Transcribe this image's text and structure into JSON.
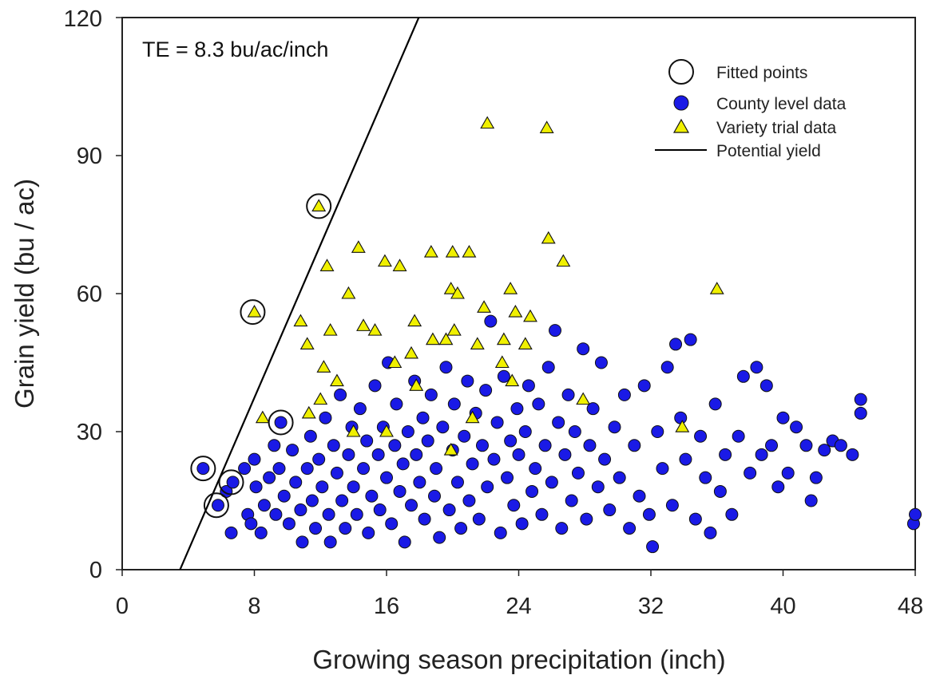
{
  "chart_data": {
    "type": "scatter",
    "xlabel": "Growing season precipitation (inch)",
    "ylabel": "Grain yield (bu / ac)",
    "xlim": [
      0,
      48
    ],
    "ylim": [
      0,
      120
    ],
    "xticks": [
      "0",
      "8",
      "16",
      "24",
      "32",
      "40",
      "48"
    ],
    "yticks": [
      "0",
      "30",
      "60",
      "90",
      "120"
    ],
    "annotation": "TE = 8.3 bu/ac/inch",
    "legend_position": "top-right",
    "legend": [
      "Fitted points",
      "County level data",
      "Variety trial data",
      "Potential yield"
    ],
    "colors": {
      "county": "#1a1ae6",
      "variety": "#f0f000",
      "marker_edge": "#111111",
      "line": "#000000"
    },
    "series": [
      {
        "name": "Fitted points",
        "marker": "open-circle",
        "points": [
          [
            4.9,
            22
          ],
          [
            5.7,
            14
          ],
          [
            6.6,
            19
          ],
          [
            7.9,
            56
          ],
          [
            9.6,
            32
          ],
          [
            11.9,
            79
          ]
        ]
      },
      {
        "name": "County level data",
        "marker": "circle",
        "points": [
          [
            4.9,
            22
          ],
          [
            5.8,
            14
          ],
          [
            6.3,
            17
          ],
          [
            6.7,
            19
          ],
          [
            6.6,
            8
          ],
          [
            7.4,
            22
          ],
          [
            7.6,
            12
          ],
          [
            7.8,
            10
          ],
          [
            8.0,
            24
          ],
          [
            8.1,
            18
          ],
          [
            8.4,
            8
          ],
          [
            8.6,
            14
          ],
          [
            8.9,
            20
          ],
          [
            9.2,
            27
          ],
          [
            9.3,
            12
          ],
          [
            9.5,
            22
          ],
          [
            9.6,
            32
          ],
          [
            9.8,
            16
          ],
          [
            10.1,
            10
          ],
          [
            10.3,
            26
          ],
          [
            10.5,
            19
          ],
          [
            10.8,
            13
          ],
          [
            10.9,
            6
          ],
          [
            11.2,
            22
          ],
          [
            11.4,
            29
          ],
          [
            11.5,
            15
          ],
          [
            11.7,
            9
          ],
          [
            11.9,
            24
          ],
          [
            12.1,
            18
          ],
          [
            12.3,
            33
          ],
          [
            12.5,
            12
          ],
          [
            12.6,
            6
          ],
          [
            12.8,
            27
          ],
          [
            13.0,
            21
          ],
          [
            13.2,
            38
          ],
          [
            13.3,
            15
          ],
          [
            13.5,
            9
          ],
          [
            13.7,
            25
          ],
          [
            13.9,
            31
          ],
          [
            14.0,
            18
          ],
          [
            14.2,
            12
          ],
          [
            14.4,
            35
          ],
          [
            14.6,
            22
          ],
          [
            14.8,
            28
          ],
          [
            14.9,
            8
          ],
          [
            15.1,
            16
          ],
          [
            15.3,
            40
          ],
          [
            15.5,
            25
          ],
          [
            15.6,
            13
          ],
          [
            15.8,
            31
          ],
          [
            16.0,
            20
          ],
          [
            16.1,
            45
          ],
          [
            16.3,
            10
          ],
          [
            16.5,
            27
          ],
          [
            16.6,
            36
          ],
          [
            16.8,
            17
          ],
          [
            17.0,
            23
          ],
          [
            17.1,
            6
          ],
          [
            17.3,
            30
          ],
          [
            17.5,
            14
          ],
          [
            17.7,
            41
          ],
          [
            17.8,
            25
          ],
          [
            18.0,
            19
          ],
          [
            18.2,
            33
          ],
          [
            18.3,
            11
          ],
          [
            18.5,
            28
          ],
          [
            18.7,
            38
          ],
          [
            18.9,
            16
          ],
          [
            19.0,
            22
          ],
          [
            19.2,
            7
          ],
          [
            19.4,
            31
          ],
          [
            19.6,
            44
          ],
          [
            19.8,
            13
          ],
          [
            20.0,
            26
          ],
          [
            20.1,
            36
          ],
          [
            20.3,
            19
          ],
          [
            20.5,
            9
          ],
          [
            20.7,
            29
          ],
          [
            20.9,
            41
          ],
          [
            21.0,
            15
          ],
          [
            21.2,
            23
          ],
          [
            21.4,
            34
          ],
          [
            21.6,
            11
          ],
          [
            21.8,
            27
          ],
          [
            22.0,
            39
          ],
          [
            22.1,
            18
          ],
          [
            22.3,
            54
          ],
          [
            22.5,
            24
          ],
          [
            22.7,
            32
          ],
          [
            22.9,
            8
          ],
          [
            23.1,
            42
          ],
          [
            23.3,
            20
          ],
          [
            23.5,
            28
          ],
          [
            23.7,
            14
          ],
          [
            23.9,
            35
          ],
          [
            24.0,
            25
          ],
          [
            24.2,
            10
          ],
          [
            24.4,
            30
          ],
          [
            24.6,
            40
          ],
          [
            24.8,
            17
          ],
          [
            25.0,
            22
          ],
          [
            25.2,
            36
          ],
          [
            25.4,
            12
          ],
          [
            25.6,
            27
          ],
          [
            25.8,
            44
          ],
          [
            26.0,
            19
          ],
          [
            26.2,
            52
          ],
          [
            26.4,
            32
          ],
          [
            26.6,
            9
          ],
          [
            26.8,
            25
          ],
          [
            27.0,
            38
          ],
          [
            27.2,
            15
          ],
          [
            27.4,
            30
          ],
          [
            27.6,
            21
          ],
          [
            27.9,
            48
          ],
          [
            28.1,
            11
          ],
          [
            28.3,
            27
          ],
          [
            28.5,
            35
          ],
          [
            28.8,
            18
          ],
          [
            29.0,
            45
          ],
          [
            29.2,
            24
          ],
          [
            29.5,
            13
          ],
          [
            29.8,
            31
          ],
          [
            30.1,
            20
          ],
          [
            30.4,
            38
          ],
          [
            30.7,
            9
          ],
          [
            31.0,
            27
          ],
          [
            31.3,
            16
          ],
          [
            31.6,
            40
          ],
          [
            31.9,
            12
          ],
          [
            32.1,
            5
          ],
          [
            32.4,
            30
          ],
          [
            32.7,
            22
          ],
          [
            33.0,
            44
          ],
          [
            33.3,
            14
          ],
          [
            33.5,
            49
          ],
          [
            33.8,
            33
          ],
          [
            34.1,
            24
          ],
          [
            34.4,
            50
          ],
          [
            34.7,
            11
          ],
          [
            35.0,
            29
          ],
          [
            35.3,
            20
          ],
          [
            35.6,
            8
          ],
          [
            35.9,
            36
          ],
          [
            36.2,
            17
          ],
          [
            36.5,
            25
          ],
          [
            36.9,
            12
          ],
          [
            37.3,
            29
          ],
          [
            37.6,
            42
          ],
          [
            38.0,
            21
          ],
          [
            38.4,
            44
          ],
          [
            38.7,
            25
          ],
          [
            39.0,
            40
          ],
          [
            39.3,
            27
          ],
          [
            39.7,
            18
          ],
          [
            40.0,
            33
          ],
          [
            40.3,
            21
          ],
          [
            40.8,
            31
          ],
          [
            41.4,
            27
          ],
          [
            41.7,
            15
          ],
          [
            42.0,
            20
          ],
          [
            42.5,
            26
          ],
          [
            43.0,
            28
          ],
          [
            43.5,
            27
          ],
          [
            44.2,
            25
          ],
          [
            44.7,
            37
          ],
          [
            44.7,
            34
          ],
          [
            47.9,
            10
          ],
          [
            48.0,
            12
          ]
        ]
      },
      {
        "name": "Variety trial data",
        "marker": "triangle",
        "points": [
          [
            8.0,
            56
          ],
          [
            8.5,
            33
          ],
          [
            10.8,
            54
          ],
          [
            11.2,
            49
          ],
          [
            11.3,
            34
          ],
          [
            11.9,
            79
          ],
          [
            12.0,
            37
          ],
          [
            12.2,
            44
          ],
          [
            12.4,
            66
          ],
          [
            12.6,
            52
          ],
          [
            13.0,
            41
          ],
          [
            13.7,
            60
          ],
          [
            14.0,
            30
          ],
          [
            14.3,
            70
          ],
          [
            14.6,
            53
          ],
          [
            15.3,
            52
          ],
          [
            15.9,
            67
          ],
          [
            16.0,
            30
          ],
          [
            16.5,
            45
          ],
          [
            16.8,
            66
          ],
          [
            17.5,
            47
          ],
          [
            17.7,
            54
          ],
          [
            17.8,
            40
          ],
          [
            18.7,
            69
          ],
          [
            18.8,
            50
          ],
          [
            19.6,
            50
          ],
          [
            19.9,
            61
          ],
          [
            19.9,
            26
          ],
          [
            20.0,
            69
          ],
          [
            20.1,
            52
          ],
          [
            20.3,
            60
          ],
          [
            21.0,
            69
          ],
          [
            21.2,
            33
          ],
          [
            21.5,
            49
          ],
          [
            21.9,
            57
          ],
          [
            22.1,
            97
          ],
          [
            23.0,
            45
          ],
          [
            23.1,
            50
          ],
          [
            23.5,
            61
          ],
          [
            23.6,
            41
          ],
          [
            23.8,
            56
          ],
          [
            24.4,
            49
          ],
          [
            24.7,
            55
          ],
          [
            25.7,
            96
          ],
          [
            25.8,
            72
          ],
          [
            26.7,
            67
          ],
          [
            27.9,
            37
          ],
          [
            33.9,
            31
          ],
          [
            36.0,
            61
          ]
        ]
      },
      {
        "name": "Potential yield",
        "type": "line",
        "points": [
          [
            3.5,
            0
          ],
          [
            17.95,
            120
          ]
        ]
      }
    ]
  }
}
